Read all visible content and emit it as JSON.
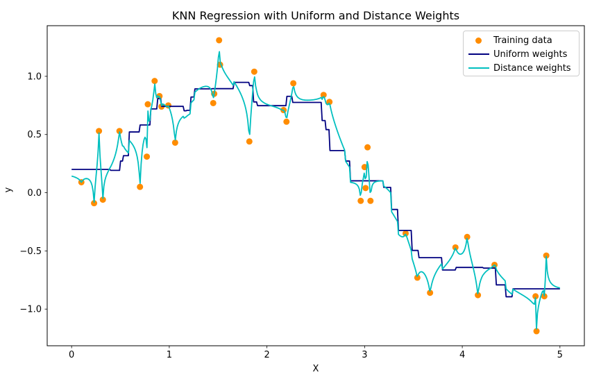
{
  "chart_data": {
    "type": "scatter+line",
    "title": "KNN Regression with Uniform and Distance Weights",
    "xlabel": "X",
    "ylabel": "y",
    "xlim": [
      -0.25,
      5.25
    ],
    "ylim": [
      -1.315,
      1.435
    ],
    "grid": false,
    "legend_position": "upper right",
    "x_ticks": {
      "values": [
        0,
        1,
        2,
        3,
        4,
        5
      ],
      "labels": [
        "0",
        "1",
        "2",
        "3",
        "4",
        "5"
      ]
    },
    "y_ticks": {
      "values": [
        1.0,
        0.5,
        0.0,
        -0.5,
        -1.0
      ],
      "labels": [
        "1.0",
        "0.5",
        "0.0",
        "−0.5",
        "−1.0"
      ]
    },
    "training_data": {
      "x": [
        0.1,
        0.23,
        0.28,
        0.32,
        0.49,
        0.7,
        0.77,
        0.78,
        0.85,
        0.9,
        0.92,
        0.99,
        1.06,
        1.45,
        1.46,
        1.51,
        1.52,
        1.82,
        1.87,
        2.17,
        2.2,
        2.27,
        2.58,
        2.64,
        2.96,
        3.0,
        3.01,
        3.03,
        3.06,
        3.42,
        3.54,
        3.67,
        3.93,
        4.05,
        4.16,
        4.33,
        4.75,
        4.76,
        4.84,
        4.86
      ],
      "y": [
        0.09,
        -0.09,
        0.53,
        -0.06,
        0.53,
        0.05,
        0.31,
        0.76,
        0.96,
        0.83,
        0.74,
        0.75,
        0.43,
        0.77,
        0.85,
        1.31,
        1.1,
        0.44,
        1.04,
        0.71,
        0.61,
        0.94,
        0.84,
        0.78,
        -0.07,
        0.22,
        0.04,
        0.39,
        -0.07,
        -0.35,
        -0.73,
        -0.86,
        -0.47,
        -0.38,
        -0.88,
        -0.62,
        -0.89,
        -1.19,
        -0.89,
        -0.54
      ]
    },
    "knn": {
      "k": 5,
      "prediction_grid": {
        "start": 0,
        "stop": 5,
        "num": 500
      }
    },
    "series": [
      {
        "name": "Training data",
        "type": "scatter",
        "color": "#FF8C00",
        "marker": "circle",
        "marker_radius": 4.5
      },
      {
        "name": "Uniform weights",
        "type": "line",
        "weights": "uniform",
        "color": "#000080",
        "line_width": 1.8
      },
      {
        "name": "Distance weights",
        "type": "line",
        "weights": "distance",
        "color": "#00BFBF",
        "line_width": 1.8
      }
    ]
  },
  "legend": {
    "items": [
      "Training data",
      "Uniform weights",
      "Distance weights"
    ]
  }
}
